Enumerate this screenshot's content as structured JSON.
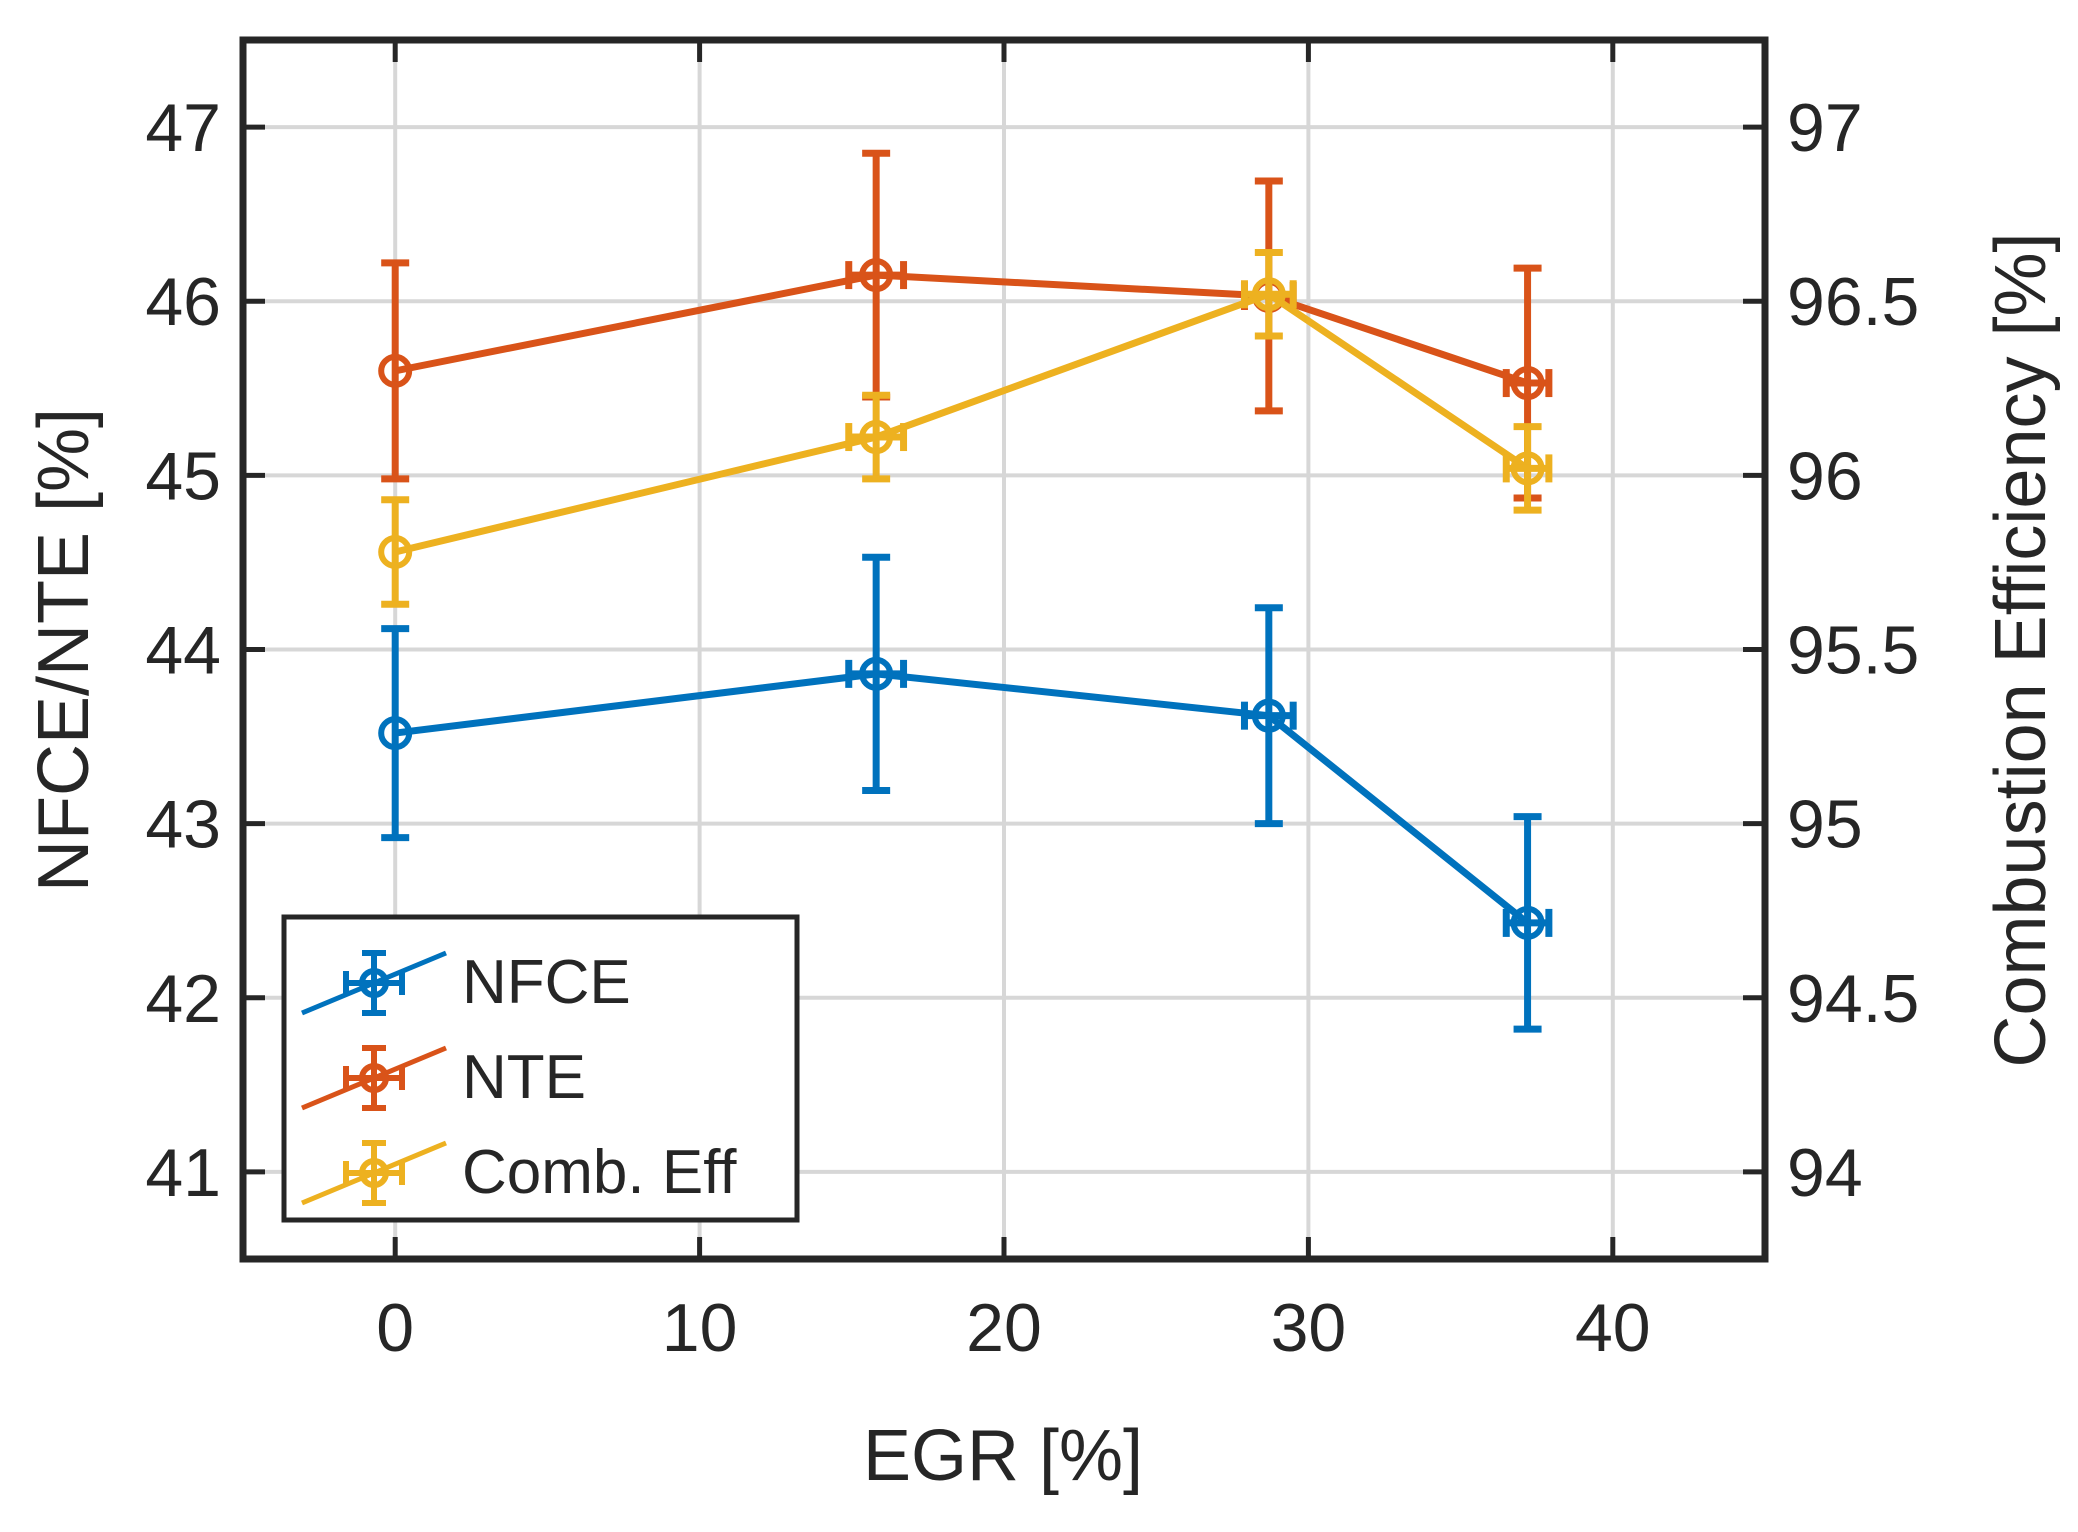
{
  "chart_data": {
    "type": "line",
    "title": "",
    "xlabel": "EGR [%]",
    "ylabel_left": "NFCE/NTE [%]",
    "ylabel_right": "Combustion Efficiency [%]",
    "xlim": [
      -5,
      45
    ],
    "ylim_left": [
      40.5,
      47.5
    ],
    "ylim_right": [
      93.75,
      97.25
    ],
    "x_ticks": [
      "0",
      "10",
      "20",
      "30",
      "40"
    ],
    "y_left_ticks": [
      "41",
      "42",
      "43",
      "44",
      "45",
      "46",
      "47"
    ],
    "y_right_ticks": [
      "94",
      "94.5",
      "95",
      "95.5",
      "96",
      "96.5",
      "97"
    ],
    "grid": true,
    "legend_position": "bottom-left",
    "series": [
      {
        "name": "NFCE",
        "axis": "left",
        "color": "#0072BD",
        "x": [
          0,
          15.8,
          28.7,
          37.2
        ],
        "y": [
          43.52,
          43.86,
          43.62,
          42.43
        ],
        "y_err": [
          0.6,
          0.67,
          0.62,
          0.61
        ],
        "x_err": [
          0.0,
          0.9,
          0.8,
          0.7
        ]
      },
      {
        "name": "NTE",
        "axis": "left",
        "color": "#D95319",
        "x": [
          0,
          15.8,
          28.7,
          37.2
        ],
        "y": [
          45.6,
          46.15,
          46.03,
          45.53
        ],
        "y_err": [
          0.62,
          0.7,
          0.66,
          0.66
        ],
        "x_err": [
          0.0,
          0.9,
          0.8,
          0.7
        ]
      },
      {
        "name": "Comb. Eff",
        "axis": "right",
        "color": "#EDB120",
        "x": [
          0,
          15.8,
          28.7,
          37.2
        ],
        "y": [
          95.78,
          96.11,
          96.52,
          96.02
        ],
        "y_err": [
          0.15,
          0.12,
          0.12,
          0.12
        ],
        "x_err": [
          0.0,
          0.9,
          0.8,
          0.7
        ]
      }
    ]
  }
}
